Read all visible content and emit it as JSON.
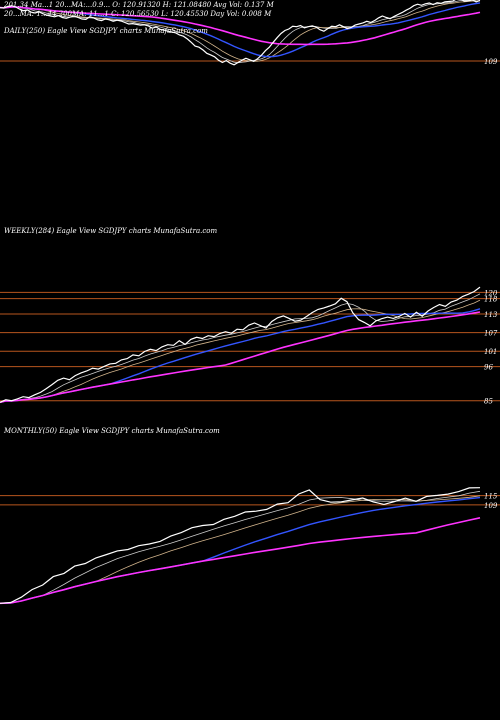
{
  "header": {
    "line1": "201.34   Ma...1       20...MA:...0.9...      O: 120.91320 H: 121.08480 Avg Vol: 0.137 M",
    "line2": "20...MA: 1...44     200MA: 11...1          C: 120.56530 L: 120.45530 Day Vol: 0.008 M"
  },
  "colors": {
    "background": "#000000",
    "price": "#ffffff",
    "ma_blue": "#3355ff",
    "ma_magenta": "#ff33ff",
    "ma_gray": "#cccccc",
    "ma_tan": "#d2b48c",
    "level_line": "#b8561e"
  },
  "chart_data": [
    {
      "type": "line",
      "title": "DAILY(250) Eagle View SGDJPY charts MunafaSutra.com",
      "y_ticks": [
        "109"
      ],
      "level_lines": [
        109
      ],
      "ylim": [
        104,
        125
      ],
      "series": [
        {
          "role": "price",
          "values": [
            123.0,
            122.9,
            123.3,
            123.5,
            123.2,
            122.6,
            122.2,
            122.4,
            121.8,
            121.6,
            121.9,
            121.4,
            121.0,
            120.8,
            120.6,
            120.9,
            120.4,
            120.2,
            120.5,
            120.8,
            120.4,
            120.0,
            119.9,
            120.6,
            120.3,
            119.8,
            119.6,
            120.0,
            119.8,
            119.4,
            119.7,
            119.5,
            119.1,
            118.7,
            118.8,
            118.6,
            118.4,
            118.5,
            118.2,
            117.6,
            117.9,
            117.3,
            117.1,
            116.8,
            116.6,
            116.4,
            115.8,
            115.5,
            114.8,
            113.9,
            112.9,
            112.6,
            111.9,
            111.0,
            110.6,
            110.1,
            109.2,
            108.6,
            109.1,
            108.4,
            108.0,
            108.6,
            109.2,
            109.7,
            109.3,
            108.9,
            109.6,
            110.5,
            111.7,
            112.6,
            113.9,
            115.1,
            116.2,
            117.0,
            117.4,
            118.1,
            118.0,
            118.3,
            117.7,
            118.0,
            118.2,
            117.9,
            117.2,
            116.8,
            117.5,
            118.1,
            118.0,
            118.5,
            118.0,
            117.5,
            117.8,
            118.4,
            118.7,
            119.0,
            119.4,
            119.1,
            119.6,
            120.3,
            120.8,
            120.4,
            120.1,
            120.7,
            121.2,
            121.7,
            122.3,
            122.8,
            123.5,
            123.9,
            123.6,
            124.0,
            124.2,
            123.8,
            124.3,
            124.1,
            124.5,
            124.6,
            124.7,
            125.3,
            125.2,
            124.7,
            124.8,
            125.0,
            124.5,
            124.9
          ]
        }
      ]
    },
    {
      "type": "line",
      "title": "WEEKLY(284) Eagle View SGDJPY charts MunafaSutra.com",
      "y_ticks": [
        "120",
        "118",
        "113",
        "107",
        "101",
        "96",
        "85"
      ],
      "level_lines": [
        120,
        118,
        113,
        107,
        101,
        96,
        85
      ],
      "ylim": [
        82,
        124
      ],
      "series": [
        {
          "role": "price",
          "values": [
            84.5,
            85.3,
            85.0,
            85.6,
            86.3,
            86.0,
            86.9,
            87.7,
            88.9,
            90.2,
            91.6,
            92.3,
            91.8,
            93.1,
            94.0,
            94.6,
            95.5,
            95.2,
            96.1,
            96.9,
            97.1,
            98.2,
            98.6,
            99.8,
            99.5,
            100.9,
            101.6,
            101.2,
            102.4,
            103.1,
            102.9,
            104.4,
            103.2,
            104.8,
            105.5,
            105.1,
            106.0,
            105.7,
            106.7,
            107.3,
            106.8,
            108.1,
            107.9,
            109.4,
            110.1,
            109.3,
            108.5,
            110.6,
            111.8,
            112.4,
            111.6,
            110.7,
            111.0,
            112.2,
            113.5,
            114.5,
            115.0,
            115.6,
            116.3,
            118.1,
            117.0,
            113.4,
            111.2,
            110.3,
            109.2,
            110.8,
            111.5,
            112.0,
            111.6,
            112.2,
            113.2,
            112.0,
            113.6,
            112.3,
            114.0,
            115.1,
            116.1,
            115.5,
            116.9,
            117.5,
            118.7,
            119.4,
            120.3,
            121.7
          ]
        }
      ]
    },
    {
      "type": "line",
      "title": "MONTHLY(50) Eagle View SGDJPY charts MunafaSutra.com",
      "y_ticks": [
        "115",
        "109"
      ],
      "level_lines": [
        115,
        109
      ],
      "ylim": [
        40,
        122
      ],
      "series": [
        {
          "role": "price",
          "values": [
            44.4,
            44.9,
            48.4,
            53.4,
            56.4,
            61.9,
            64.0,
            68.8,
            70.5,
            74.2,
            76.4,
            78.8,
            79.7,
            82.2,
            83.3,
            85.0,
            88.5,
            90.8,
            94.0,
            95.4,
            96.1,
            99.5,
            101.5,
            104.3,
            104.8,
            106.0,
            109.5,
            110.4,
            116.1,
            118.7,
            112.4,
            110.7,
            111.0,
            112.2,
            113.5,
            110.9,
            109.3,
            111.2,
            113.4,
            111.3,
            114.5,
            115.2,
            116.0,
            117.7,
            120.1,
            120.2
          ]
        }
      ]
    }
  ]
}
